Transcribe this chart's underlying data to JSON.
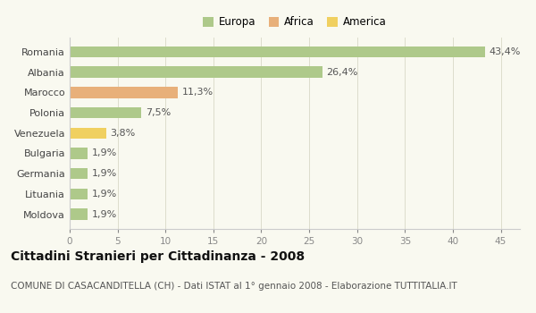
{
  "categories": [
    "Romania",
    "Albania",
    "Marocco",
    "Polonia",
    "Venezuela",
    "Bulgaria",
    "Germania",
    "Lituania",
    "Moldova"
  ],
  "values": [
    43.4,
    26.4,
    11.3,
    7.5,
    3.8,
    1.9,
    1.9,
    1.9,
    1.9
  ],
  "labels": [
    "43,4%",
    "26,4%",
    "11,3%",
    "7,5%",
    "3,8%",
    "1,9%",
    "1,9%",
    "1,9%",
    "1,9%"
  ],
  "colors": [
    "#aec98a",
    "#aec98a",
    "#e8b07a",
    "#aec98a",
    "#f0d060",
    "#aec98a",
    "#aec98a",
    "#aec98a",
    "#aec98a"
  ],
  "legend": [
    {
      "label": "Europa",
      "color": "#aec98a"
    },
    {
      "label": "Africa",
      "color": "#e8b07a"
    },
    {
      "label": "America",
      "color": "#f0d060"
    }
  ],
  "xlim": [
    0,
    47
  ],
  "xticks": [
    0,
    5,
    10,
    15,
    20,
    25,
    30,
    35,
    40,
    45
  ],
  "title": "Cittadini Stranieri per Cittadinanza - 2008",
  "subtitle": "COMUNE DI CASACANDITELLA (CH) - Dati ISTAT al 1° gennaio 2008 - Elaborazione TUTTITALIA.IT",
  "bg_color": "#f9f9f0",
  "bar_height": 0.55,
  "label_fontsize": 8,
  "title_fontsize": 10,
  "subtitle_fontsize": 7.5,
  "ytick_fontsize": 8,
  "xtick_fontsize": 7.5,
  "legend_fontsize": 8.5
}
